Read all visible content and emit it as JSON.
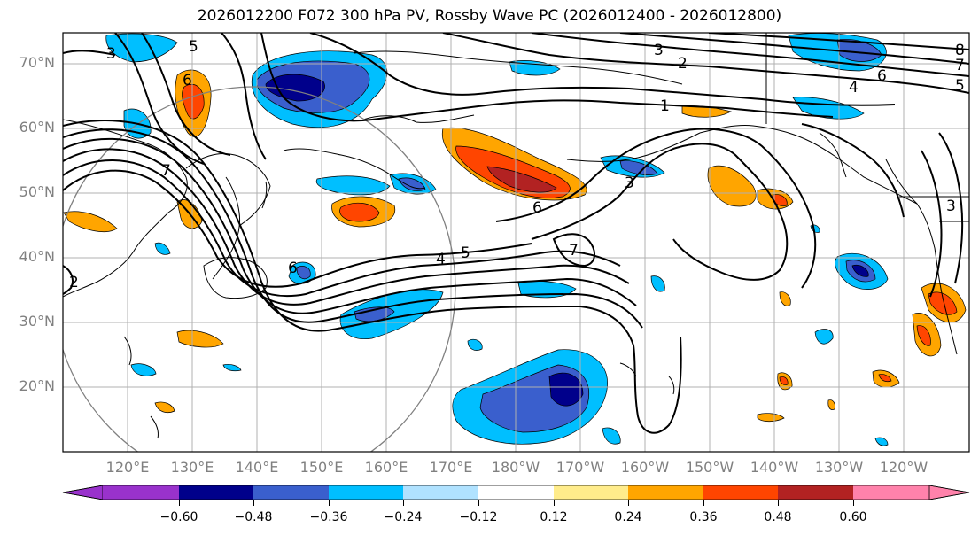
{
  "title": "2026012200 F072 300 hPa PV, Rossby Wave PC (2026012400 - 2026012800)",
  "latitude_labels": [
    "70°N",
    "60°N",
    "50°N",
    "40°N",
    "30°N",
    "20°N"
  ],
  "longitude_labels": [
    "120°E",
    "130°E",
    "140°E",
    "150°E",
    "160°E",
    "170°E",
    "180°W",
    "170°W",
    "160°W",
    "150°W",
    "140°W",
    "130°W",
    "120°W"
  ],
  "contour_labels": [
    "3",
    "5",
    "6",
    "3",
    "2",
    "1",
    "8",
    "7",
    "6",
    "4",
    "5",
    "7",
    "3",
    "7",
    "6",
    "4",
    "5",
    "2",
    "6",
    "3"
  ],
  "colorbar": {
    "tick_labels": [
      "−0.60",
      "−0.48",
      "−0.36",
      "−0.24",
      "−0.12",
      "0.12",
      "0.24",
      "0.36",
      "0.48",
      "0.60"
    ],
    "colors": [
      "#9932CC",
      "#00008B",
      "#3A5FCD",
      "#00BFFF",
      "#B0E2FF",
      "#FFFFFF",
      "#FFEC8B",
      "#FFA500",
      "#FF4500",
      "#B22222",
      "#FF82AB"
    ],
    "extend": "both"
  }
}
